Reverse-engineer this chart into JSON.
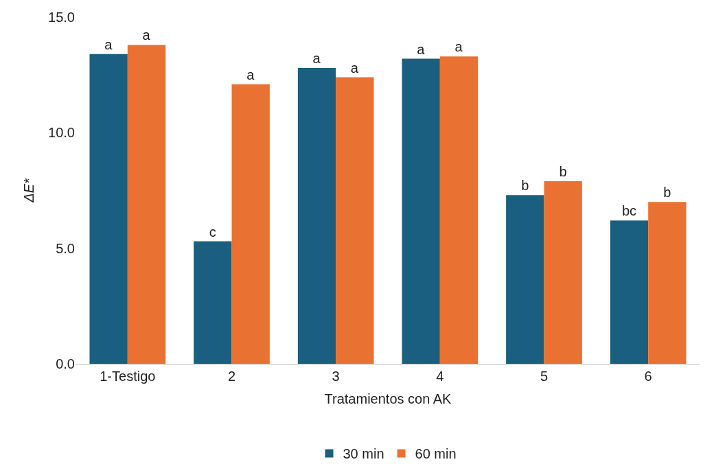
{
  "chart_data": {
    "type": "bar",
    "xlabel": "Tratamientos con AK",
    "ylabel": "ΔE*",
    "categories": [
      "1-Testigo",
      "2",
      "3",
      "4",
      "5",
      "6"
    ],
    "series": [
      {
        "name": "30 min",
        "color": "#1a5f7f",
        "values": [
          13.4,
          5.3,
          12.8,
          13.2,
          7.3,
          6.2
        ],
        "value_labels": [
          "a",
          "c",
          "a",
          "a",
          "b",
          "bc"
        ]
      },
      {
        "name": "60 min",
        "color": "#e97132",
        "values": [
          13.8,
          12.1,
          12.4,
          13.3,
          7.9,
          7.0
        ],
        "value_labels": [
          "a",
          "a",
          "a",
          "a",
          "b",
          "b"
        ]
      }
    ],
    "ylim": [
      0,
      15
    ],
    "yticks": [
      {
        "value": 0,
        "label": "0.0"
      },
      {
        "value": 5,
        "label": "5.0"
      },
      {
        "value": 10,
        "label": "10.0"
      },
      {
        "value": 15,
        "label": "15.0"
      }
    ],
    "grid": false,
    "legend": "bottom"
  }
}
